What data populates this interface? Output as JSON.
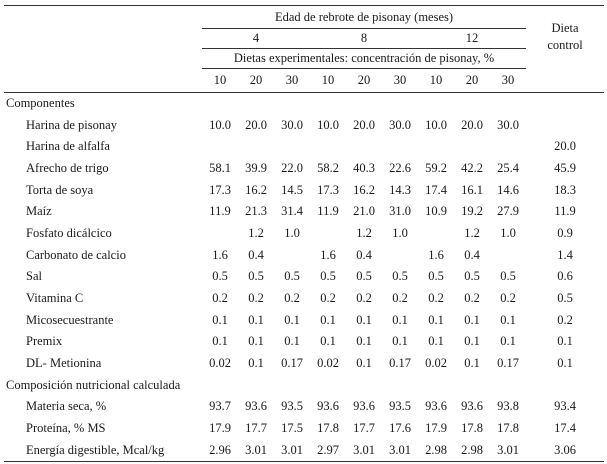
{
  "header": {
    "group_title": "Edad de rebrote de pisonay (meses)",
    "ages": [
      "4",
      "8",
      "12"
    ],
    "subtitle": "Dietas experimentales: concentración de pisonay, %",
    "concentrations": [
      "10",
      "20",
      "30",
      "10",
      "20",
      "30",
      "10",
      "20",
      "30"
    ],
    "control_line1": "Dieta",
    "control_line2": "control"
  },
  "sections": [
    {
      "title": "Componentes",
      "rows": [
        {
          "label": "Harina de pisonay",
          "values": [
            "10.0",
            "20.0",
            "30.0",
            "10.0",
            "20.0",
            "30.0",
            "10.0",
            "20.0",
            "30.0",
            ""
          ]
        },
        {
          "label": "Harina de alfalfa",
          "values": [
            "",
            "",
            "",
            "",
            "",
            "",
            "",
            "",
            "",
            "20.0"
          ]
        },
        {
          "label": "Afrecho de trigo",
          "values": [
            "58.1",
            "39.9",
            "22.0",
            "58.2",
            "40.3",
            "22.6",
            "59.2",
            "42.2",
            "25.4",
            "45.9"
          ]
        },
        {
          "label": "Torta de soya",
          "values": [
            "17.3",
            "16.2",
            "14.5",
            "17.3",
            "16.2",
            "14.3",
            "17.4",
            "16.1",
            "14.6",
            "18.3"
          ]
        },
        {
          "label": "Maíz",
          "values": [
            "11.9",
            "21.3",
            "31.4",
            "11.9",
            "21.0",
            "31.0",
            "10.9",
            "19.2",
            "27.9",
            "11.9"
          ]
        },
        {
          "label": "Fosfato dicálcico",
          "values": [
            "",
            "1.2",
            "1.0",
            "",
            "1.2",
            "1.0",
            "",
            "1.2",
            "1.0",
            "0.9"
          ]
        },
        {
          "label": "Carbonato de calcio",
          "values": [
            "1.6",
            "0.4",
            "",
            "1.6",
            "0.4",
            "",
            "1.6",
            "0.4",
            "",
            "1.4"
          ]
        },
        {
          "label": "Sal",
          "values": [
            "0.5",
            "0.5",
            "0.5",
            "0.5",
            "0.5",
            "0.5",
            "0.5",
            "0.5",
            "0.5",
            "0.6"
          ]
        },
        {
          "label": "Vitamina C",
          "values": [
            "0.2",
            "0.2",
            "0.2",
            "0.2",
            "0.2",
            "0.2",
            "0.2",
            "0.2",
            "0.2",
            "0.5"
          ]
        },
        {
          "label": "Micosecuestrante",
          "values": [
            "0.1",
            "0.1",
            "0.1",
            "0.1",
            "0.1",
            "0.1",
            "0.1",
            "0.1",
            "0.1",
            "0.2"
          ]
        },
        {
          "label": "Premix",
          "values": [
            "0.1",
            "0.1",
            "0.1",
            "0.1",
            "0.1",
            "0.1",
            "0.1",
            "0.1",
            "0.1",
            "0.1"
          ]
        },
        {
          "label": "DL- Metionina",
          "values": [
            "0.02",
            "0.1",
            "0.17",
            "0.02",
            "0.1",
            "0.17",
            "0.02",
            "0.1",
            "0.17",
            "0.1"
          ]
        }
      ]
    },
    {
      "title": "Composición nutricional calculada",
      "rows": [
        {
          "label": "Materia seca, %",
          "values": [
            "93.7",
            "93.6",
            "93.5",
            "93.6",
            "93.6",
            "93.5",
            "93.6",
            "93.6",
            "93.8",
            "93.4"
          ]
        },
        {
          "label": "Proteína, % MS",
          "values": [
            "17.9",
            "17.7",
            "17.5",
            "17.8",
            "17.7",
            "17.6",
            "17.9",
            "17.8",
            "17.8",
            "17.4"
          ]
        },
        {
          "label": "Energía digestible, Mcal/kg",
          "values": [
            "2.96",
            "3.01",
            "3.01",
            "2.97",
            "3.01",
            "3.01",
            "2.98",
            "2.98",
            "3.01",
            "3.06"
          ]
        }
      ]
    }
  ]
}
